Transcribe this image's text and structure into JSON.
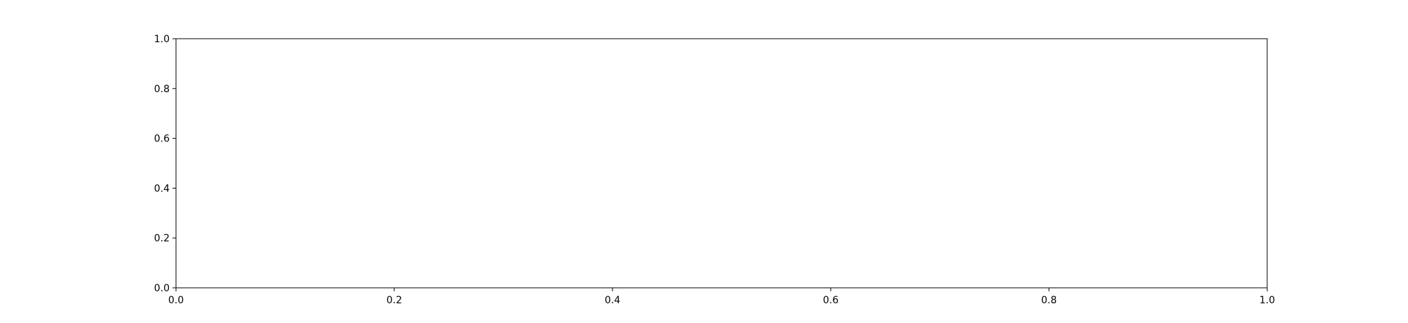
{
  "chart_data": {
    "type": "line",
    "title": "",
    "xlabel": "",
    "ylabel": "",
    "xlim": [
      0.0,
      1.0
    ],
    "ylim": [
      0.0,
      1.0
    ],
    "x_ticks": [
      0.0,
      0.2,
      0.4,
      0.6,
      0.8,
      1.0
    ],
    "x_tick_labels": [
      "0.0",
      "0.2",
      "0.4",
      "0.6",
      "0.8",
      "1.0"
    ],
    "y_ticks": [
      0.0,
      0.2,
      0.4,
      0.6,
      0.8,
      1.0
    ],
    "y_tick_labels": [
      "0.0",
      "0.2",
      "0.4",
      "0.6",
      "0.8",
      "1.0"
    ],
    "grid": false,
    "series": []
  }
}
